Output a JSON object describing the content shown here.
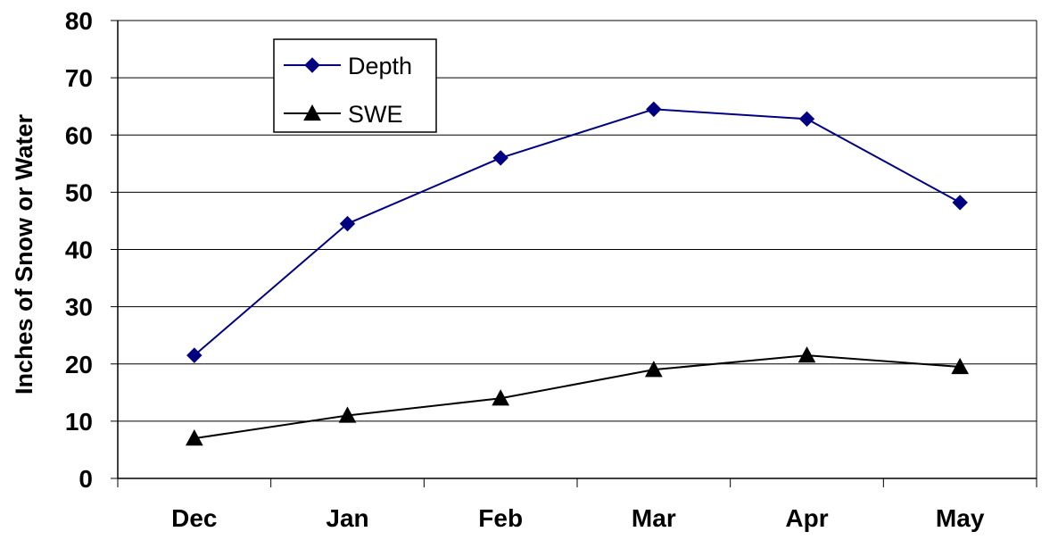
{
  "chart_data": {
    "type": "line",
    "title": "",
    "xlabel": "",
    "ylabel": "Inches of Snow  or  Water",
    "categories": [
      "Dec",
      "Jan",
      "Feb",
      "Mar",
      "Apr",
      "May"
    ],
    "ylim": [
      0,
      80
    ],
    "yticks": [
      0,
      10,
      20,
      30,
      40,
      50,
      60,
      70,
      80
    ],
    "grid": true,
    "legend_position": "top-left",
    "series": [
      {
        "name": "Depth",
        "values": [
          21.5,
          44.5,
          56,
          64.5,
          62.8,
          48.2
        ],
        "color": "#000080",
        "marker": "diamond"
      },
      {
        "name": "SWE",
        "values": [
          7,
          11,
          14,
          19,
          21.5,
          19.5
        ],
        "color": "#000000",
        "marker": "triangle"
      }
    ]
  }
}
